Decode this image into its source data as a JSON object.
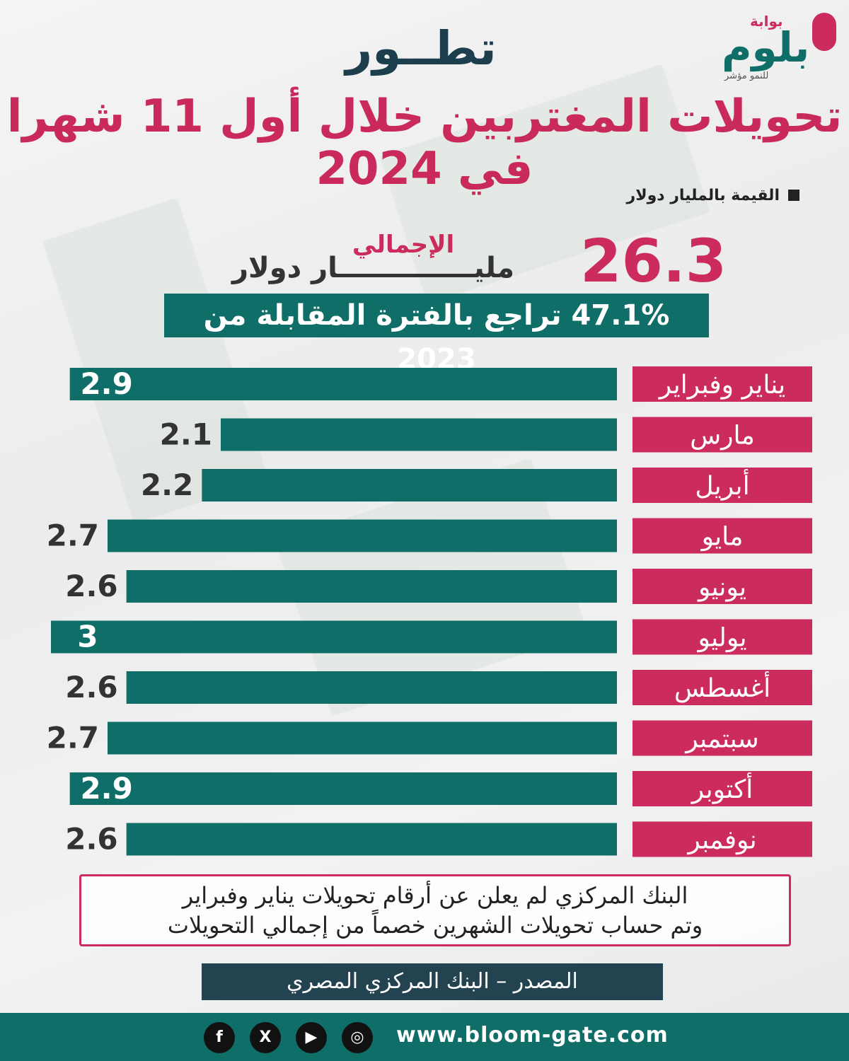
{
  "brand": {
    "name": "بلوم",
    "top_label": "بوابة",
    "tagline": "للنمو مؤشر",
    "accent": "#cc2c5d",
    "primary": "#0f6e67",
    "dark": "#234350"
  },
  "header": {
    "top": "تطــور",
    "title": "تحويلات المغتربين خلال أول 11 شهرا في 2024"
  },
  "legend": {
    "label": "القيمة بالمليار دولار"
  },
  "summary": {
    "total_value": "26.3",
    "total_label": "الإجمالي",
    "total_unit": "مليــــــــــــــار دولار",
    "change_text": "47.1% تراجع بالفترة المقابلة من 2023"
  },
  "chart_data": {
    "type": "bar",
    "orientation": "horizontal",
    "categories": [
      "يناير وفبراير",
      "مارس",
      "أبريل",
      "مايو",
      "يونيو",
      "يوليو",
      "أغسطس",
      "سبتمبر",
      "أكتوبر",
      "نوفمبر"
    ],
    "values": [
      2.9,
      2.1,
      2.2,
      2.7,
      2.6,
      3,
      2.6,
      2.7,
      2.9,
      2.6
    ],
    "value_labels": [
      "2.9",
      "2.1",
      "2.2",
      "2.7",
      "2.6",
      "3",
      "2.6",
      "2.7",
      "2.9",
      "2.6"
    ],
    "ylabel": "القيمة بالمليار دولار",
    "bar_color": "#0f6e67",
    "category_label_color": "#cc2c5d"
  },
  "note": {
    "line1": "البنك المركزي لم يعلن عن أرقام تحويلات يناير وفبراير",
    "line2": "وتم حساب تحويلات الشهرين خصماً من إجمالي التحويلات"
  },
  "source": {
    "text": "المصدر – البنك المركزي المصري"
  },
  "footer": {
    "url": "www.bloom-gate.com",
    "social": [
      {
        "icon": "facebook-icon",
        "glyph": "f"
      },
      {
        "icon": "x-icon",
        "glyph": "X"
      },
      {
        "icon": "youtube-icon",
        "glyph": "▶"
      },
      {
        "icon": "instagram-icon",
        "glyph": "◎"
      }
    ]
  }
}
